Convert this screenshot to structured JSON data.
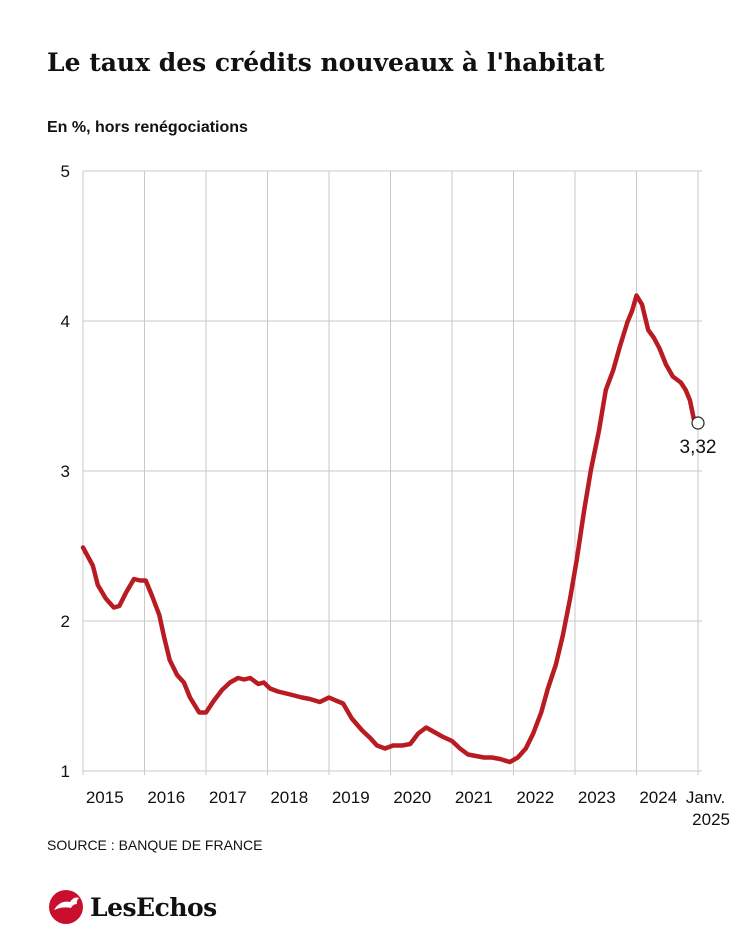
{
  "chart_data": {
    "type": "line",
    "title": "Le taux des crédits nouveaux à l'habitat",
    "subtitle": "En %, hors renégociations",
    "source": "SOURCE : BANQUE DE FRANCE",
    "logo": "LesEchos",
    "xlim": [
      2015,
      2025
    ],
    "xgrid": [
      2015,
      2016,
      2017,
      2018,
      2019,
      2020,
      2021,
      2022,
      2023,
      2024,
      2025
    ],
    "xticks": [
      {
        "value": 2015.5,
        "label": "2015"
      },
      {
        "value": 2016.5,
        "label": "2016"
      },
      {
        "value": 2017.5,
        "label": "2017"
      },
      {
        "value": 2018.5,
        "label": "2018"
      },
      {
        "value": 2019.5,
        "label": "2019"
      },
      {
        "value": 2020.5,
        "label": "2020"
      },
      {
        "value": 2021.5,
        "label": "2021"
      },
      {
        "value": 2022.5,
        "label": "2022"
      },
      {
        "value": 2023.5,
        "label": "2023"
      },
      {
        "value": 2024.5,
        "label": "2024"
      },
      {
        "value": 2025,
        "label": "Janv. 2025"
      }
    ],
    "ylim": [
      1,
      5
    ],
    "yticks": [
      1,
      2,
      3,
      4,
      5
    ],
    "grid": true,
    "series": [
      {
        "color": "#b81c22",
        "x": [
          2015.0,
          2015.16,
          2015.24,
          2015.37,
          2015.5,
          2015.59,
          2015.7,
          2015.83,
          2015.93,
          2016.02,
          2016.12,
          2016.24,
          2016.32,
          2016.41,
          2016.53,
          2016.64,
          2016.74,
          2016.89,
          2017.0,
          2017.13,
          2017.26,
          2017.39,
          2017.52,
          2017.62,
          2017.72,
          2017.85,
          2017.94,
          2018.04,
          2018.17,
          2018.37,
          2018.56,
          2018.69,
          2018.85,
          2019.0,
          2019.11,
          2019.23,
          2019.37,
          2019.54,
          2019.67,
          2019.78,
          2019.91,
          2020.04,
          2020.19,
          2020.32,
          2020.45,
          2020.58,
          2020.71,
          2020.84,
          2021.0,
          2021.13,
          2021.26,
          2021.39,
          2021.52,
          2021.65,
          2021.78,
          2021.94,
          2022.07,
          2022.2,
          2022.32,
          2022.45,
          2022.56,
          2022.69,
          2022.8,
          2022.92,
          2023.03,
          2023.15,
          2023.26,
          2023.39,
          2023.5,
          2023.62,
          2023.73,
          2023.85,
          2023.93,
          2024.0,
          2024.09,
          2024.19,
          2024.28,
          2024.37,
          2024.48,
          2024.59,
          2024.72,
          2024.8,
          2024.87,
          2024.93,
          2025.0
        ],
        "values": [
          2.49,
          2.37,
          2.24,
          2.15,
          2.09,
          2.1,
          2.19,
          2.28,
          2.27,
          2.27,
          2.17,
          2.04,
          1.89,
          1.74,
          1.64,
          1.59,
          1.49,
          1.39,
          1.39,
          1.47,
          1.54,
          1.59,
          1.62,
          1.61,
          1.62,
          1.58,
          1.59,
          1.55,
          1.53,
          1.51,
          1.49,
          1.48,
          1.46,
          1.49,
          1.47,
          1.45,
          1.35,
          1.27,
          1.22,
          1.17,
          1.15,
          1.17,
          1.17,
          1.18,
          1.25,
          1.29,
          1.26,
          1.23,
          1.2,
          1.15,
          1.11,
          1.1,
          1.09,
          1.09,
          1.08,
          1.06,
          1.09,
          1.15,
          1.25,
          1.39,
          1.55,
          1.71,
          1.9,
          2.15,
          2.41,
          2.74,
          3.01,
          3.27,
          3.54,
          3.67,
          3.83,
          3.99,
          4.07,
          4.17,
          4.11,
          3.94,
          3.89,
          3.82,
          3.71,
          3.63,
          3.59,
          3.54,
          3.47,
          3.35,
          3.32
        ],
        "value_labels": [
          null,
          null,
          null,
          null,
          null,
          null,
          null,
          null,
          null,
          null,
          null,
          null,
          null,
          null,
          null,
          null,
          null,
          null,
          null,
          null,
          null,
          null,
          null,
          null,
          null,
          null,
          null,
          null,
          null,
          null,
          null,
          null,
          null,
          null,
          null,
          null,
          null,
          null,
          null,
          null,
          null,
          null,
          null,
          null,
          null,
          null,
          null,
          null,
          null,
          null,
          null,
          null,
          null,
          null,
          null,
          null,
          null,
          null,
          null,
          null,
          null,
          null,
          null,
          null,
          null,
          null,
          null,
          null,
          null,
          null,
          null,
          null,
          null,
          null,
          null,
          null,
          null,
          null,
          null,
          null,
          null,
          null,
          null,
          null,
          "3,32"
        ]
      }
    ]
  }
}
